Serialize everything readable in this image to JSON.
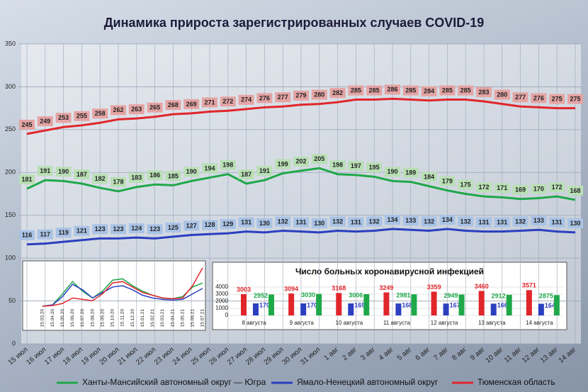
{
  "chart_data": [
    {
      "type": "line",
      "title": "Динамика прироста зарегистрированных случаев COVID-19",
      "categories": [
        "15 июл",
        "16 июл",
        "17 июл",
        "18 июл",
        "19 июл",
        "20 июл",
        "21 июл",
        "22 июл",
        "23 июл",
        "24 июл",
        "25 июл",
        "26 июл",
        "27 июл",
        "28 июл",
        "29 июл",
        "30 июл",
        "31 июл",
        "1 авг",
        "2 авг",
        "3 авг",
        "4 авг",
        "5 авг",
        "6 авг",
        "7 авг",
        "8 авг",
        "9 авг",
        "10 авг",
        "11 авг",
        "12 авг",
        "13 авг",
        "14 авг"
      ],
      "series": [
        {
          "name": "Ханты-Мансийский автономный округ — Югра",
          "color": "#1fa84a",
          "values": [
            181,
            191,
            190,
            187,
            182,
            178,
            183,
            186,
            185,
            190,
            194,
            198,
            187,
            191,
            199,
            202,
            205,
            198,
            197,
            195,
            190,
            189,
            184,
            179,
            175,
            172,
            171,
            169,
            170,
            172,
            168
          ]
        },
        {
          "name": "Ямало-Ненецкий автономный округ",
          "color": "#2b3fbf",
          "values": [
            116,
            117,
            119,
            121,
            123,
            123,
            124,
            123,
            125,
            127,
            128,
            129,
            131,
            130,
            132,
            131,
            130,
            132,
            131,
            132,
            134,
            133,
            132,
            134,
            132,
            131,
            131,
            132,
            133,
            131,
            130
          ]
        },
        {
          "name": "Тюменская область",
          "color": "#e0262b",
          "values": [
            245,
            249,
            253,
            255,
            258,
            262,
            263,
            265,
            268,
            269,
            271,
            272,
            274,
            276,
            277,
            279,
            280,
            282,
            285,
            285,
            286,
            285,
            284,
            285,
            285,
            283,
            280,
            277,
            276,
            275,
            275
          ]
        }
      ],
      "ylim": [
        0,
        350
      ],
      "yticks": [
        0,
        50,
        100,
        150,
        200,
        250,
        300,
        350
      ],
      "grid": true
    },
    {
      "type": "line",
      "categories": [
        "15.03.20",
        "15.04.20",
        "15.05.20",
        "15.06.20",
        "15.07.20",
        "15.08.20",
        "15.09.20",
        "15.10.20",
        "15.11.20",
        "15.12.20",
        "15.01.21",
        "15.02.21",
        "15.03.21",
        "15.04.21",
        "15.05.21",
        "15.06.21",
        "15.07.21"
      ],
      "series": [
        {
          "color": "#1fa84a",
          "values": [
            0,
            10,
            90,
            180,
            110,
            60,
            110,
            190,
            200,
            150,
            110,
            80,
            60,
            55,
            70,
            140,
            170
          ]
        },
        {
          "color": "#2b3fbf",
          "values": [
            0,
            10,
            70,
            160,
            120,
            60,
            100,
            140,
            150,
            120,
            80,
            60,
            50,
            45,
            50,
            90,
            130
          ]
        },
        {
          "color": "#e0262b",
          "values": [
            0,
            5,
            20,
            60,
            50,
            40,
            90,
            170,
            180,
            140,
            100,
            80,
            60,
            55,
            60,
            150,
            280
          ]
        }
      ],
      "ylim": [
        0,
        300
      ]
    },
    {
      "type": "bar",
      "title": "Число больных коронавирусной инфекцией",
      "categories": [
        "8 августа",
        "9 августа",
        "10 августа",
        "11 августа",
        "12 августа",
        "13 августа",
        "14 августа"
      ],
      "series": [
        {
          "color": "#e0262b",
          "values": [
            3003,
            3094,
            3168,
            3249,
            3359,
            3460,
            3571
          ]
        },
        {
          "color": "#2b3fbf",
          "values": [
            1700,
            1700,
            1698,
            1688,
            1676,
            1663,
            1648
          ]
        },
        {
          "color": "#1fa84a",
          "values": [
            2952,
            3030,
            3006,
            2981,
            2949,
            2912,
            2875
          ]
        }
      ],
      "ylim": [
        0,
        4000
      ],
      "yticks": [
        0,
        1000,
        2000,
        3000,
        4000
      ],
      "grid": true
    }
  ]
}
